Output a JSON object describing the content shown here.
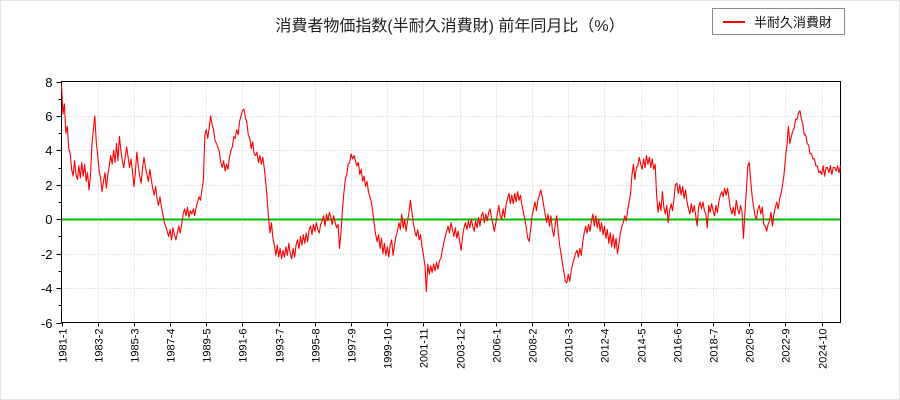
{
  "title": "消費者物価指数(半耐久消費財) 前年同月比（%）",
  "legend": {
    "label": "半耐久消費財"
  },
  "colors": {
    "series": "#ff0000",
    "zero_line": "#00bb00",
    "grid": "#cccccc",
    "frame": "#000000",
    "text": "#000000"
  },
  "y_axis": {
    "tick_labels": [
      "8",
      "6",
      "4",
      "2",
      "0",
      "-2",
      "-4",
      "-6"
    ],
    "min": -6,
    "max": 8
  },
  "x_axis": {
    "tick_labels": [
      "1981-1",
      "1983-2",
      "1985-3",
      "1987-4",
      "1989-5",
      "1991-6",
      "1993-7",
      "1995-8",
      "1997-9",
      "1999-10",
      "2001-11",
      "2003-12",
      "2006-1",
      "2008-2",
      "2010-3",
      "2012-4",
      "2014-5",
      "2016-6",
      "2018-7",
      "2020-8",
      "2022-9",
      "2024-10"
    ],
    "tick_interval_months": 25
  },
  "chart_data": {
    "type": "line",
    "series": [
      {
        "name": "半耐久消費財",
        "color": "#ff0000"
      }
    ],
    "x_start": "1981-1",
    "x_end": "2025-11",
    "frequency": "monthly",
    "title": "消費者物価指数(半耐久消費財) 前年同月比（%）",
    "ylabel": "",
    "ylim": [
      -6,
      8
    ],
    "grid": true,
    "zero_line": true,
    "legend_position": "top-right",
    "values": [
      7.8,
      6.1,
      6.7,
      5.0,
      5.4,
      4.1,
      3.8,
      2.9,
      2.5,
      3.4,
      2.6,
      2.3,
      3.1,
      2.4,
      3.3,
      2.5,
      3.2,
      2.2,
      2.7,
      1.7,
      2.5,
      4.3,
      5.2,
      6.0,
      4.5,
      3.7,
      2.8,
      2.4,
      1.6,
      2.2,
      2.7,
      1.8,
      2.6,
      3.1,
      3.7,
      3.2,
      4.0,
      3.3,
      4.4,
      3.4,
      4.8,
      4.0,
      3.4,
      3.0,
      3.6,
      4.2,
      3.6,
      3.0,
      3.5,
      2.8,
      1.9,
      2.7,
      3.9,
      3.1,
      2.5,
      2.1,
      3.0,
      3.6,
      3.0,
      2.6,
      2.2,
      2.9,
      2.3,
      1.8,
      1.4,
      1.9,
      1.2,
      0.8,
      1.3,
      0.7,
      0.3,
      -0.2,
      -0.4,
      -0.7,
      -1.0,
      -0.6,
      -1.2,
      -0.5,
      -0.9,
      -1.2,
      -0.8,
      -0.4,
      -0.8,
      -0.3,
      0.3,
      0.6,
      0.2,
      0.7,
      0.1,
      0.5,
      0.3,
      0.6,
      0.2,
      0.7,
      1.0,
      1.3,
      1.1,
      1.7,
      2.3,
      4.9,
      5.2,
      4.7,
      5.3,
      6.0,
      5.5,
      5.2,
      4.6,
      4.4,
      4.2,
      3.9,
      3.3,
      3.0,
      3.4,
      2.8,
      3.2,
      2.9,
      3.6,
      4.0,
      4.2,
      4.8,
      4.7,
      5.2,
      4.9,
      5.7,
      6.0,
      6.3,
      6.4,
      5.9,
      5.6,
      4.9,
      4.7,
      4.1,
      4.5,
      3.8,
      3.7,
      3.9,
      3.3,
      3.7,
      3.2,
      3.6,
      3.0,
      2.2,
      1.2,
      0.1,
      -0.8,
      -0.2,
      -1.1,
      -1.5,
      -2.1,
      -1.5,
      -2.2,
      -1.7,
      -2.3,
      -1.8,
      -2.2,
      -1.6,
      -2.1,
      -1.4,
      -2.0,
      -2.3,
      -1.7,
      -2.2,
      -1.5,
      -1.2,
      -1.7,
      -1.0,
      -1.5,
      -0.9,
      -1.4,
      -0.8,
      -1.3,
      -0.6,
      -0.4,
      -0.9,
      -0.3,
      -0.7,
      -0.2,
      -0.6,
      -0.8,
      -0.3,
      -0.1,
      0.2,
      -0.4,
      0.3,
      -0.1,
      0.4,
      0.1,
      -0.3,
      0.2,
      -0.2,
      -0.5,
      -0.3,
      -1.7,
      -0.8,
      0.5,
      1.5,
      2.3,
      2.6,
      3.2,
      3.3,
      3.8,
      3.5,
      3.7,
      3.4,
      3.1,
      3.3,
      2.6,
      2.9,
      2.2,
      2.5,
      1.9,
      2.2,
      1.6,
      1.3,
      1.0,
      0.4,
      -0.3,
      -0.9,
      -1.3,
      -0.9,
      -1.7,
      -1.1,
      -2.0,
      -1.4,
      -2.1,
      -1.6,
      -2.2,
      -1.5,
      -1.2,
      -2.1,
      -1.5,
      -1.0,
      -0.7,
      -0.2,
      -0.6,
      0.3,
      -0.5,
      0.0,
      -0.7,
      -0.1,
      0.4,
      1.1,
      0.4,
      -0.2,
      -0.7,
      -1.0,
      -0.6,
      -1.2,
      -0.9,
      -1.6,
      -2.1,
      -2.7,
      -4.2,
      -2.6,
      -3.2,
      -2.7,
      -3.1,
      -2.6,
      -3.0,
      -2.5,
      -2.9,
      -2.4,
      -2.3,
      -1.8,
      -1.4,
      -1.0,
      -0.7,
      -0.4,
      -0.8,
      -0.2,
      -0.6,
      -1.0,
      -0.5,
      -1.1,
      -0.7,
      -1.3,
      -1.8,
      -1.0,
      -0.5,
      -0.2,
      -0.6,
      -0.1,
      -0.5,
      0.0,
      -0.4,
      -0.7,
      -0.1,
      -0.5,
      0.1,
      -0.4,
      0.2,
      0.4,
      -0.2,
      0.3,
      -0.1,
      0.4,
      0.6,
      0.1,
      -0.3,
      -0.7,
      -0.2,
      0.3,
      0.8,
      0.2,
      0.0,
      0.6,
      0.1,
      0.8,
      1.2,
      1.5,
      0.9,
      1.4,
      0.9,
      1.5,
      1.0,
      1.6,
      1.1,
      1.4,
      0.8,
      0.4,
      0.0,
      -0.5,
      -1.1,
      -1.3,
      -0.6,
      0.2,
      0.6,
      1.0,
      0.5,
      1.1,
      1.4,
      1.7,
      1.3,
      0.8,
      0.3,
      -0.2,
      0.3,
      -0.4,
      0.2,
      -0.6,
      -1.0,
      -0.3,
      0.2,
      -0.7,
      -1.5,
      -2.0,
      -2.6,
      -3.1,
      -3.6,
      -3.7,
      -3.2,
      -3.6,
      -3.0,
      -2.6,
      -2.3,
      -2.0,
      -1.8,
      -2.2,
      -1.7,
      -2.1,
      -1.3,
      -0.8,
      -0.4,
      -0.8,
      -0.3,
      -0.7,
      -0.1,
      0.3,
      -0.4,
      0.2,
      -0.5,
      0.0,
      -0.7,
      -0.2,
      -0.9,
      -0.4,
      -1.1,
      -0.6,
      -1.4,
      -0.8,
      -1.6,
      -0.9,
      -1.7,
      -1.1,
      -2.0,
      -1.4,
      -0.8,
      -0.4,
      -0.2,
      0.2,
      -0.1,
      0.5,
      1.0,
      1.5,
      2.6,
      3.2,
      2.3,
      3.0,
      3.1,
      3.6,
      3.2,
      2.9,
      3.5,
      3.0,
      3.7,
      3.2,
      3.6,
      3.0,
      3.5,
      2.9,
      3.2,
      1.4,
      0.4,
      1.0,
      0.5,
      1.6,
      0.7,
      0.3,
      0.8,
      -0.2,
      0.5,
      0.9,
      0.5,
      1.2,
      2.0,
      2.1,
      1.5,
      2.0,
      1.4,
      1.9,
      1.2,
      1.7,
      1.0,
      0.6,
      0.3,
      0.9,
      0.4,
      0.8,
      0.2,
      -0.4,
      0.7,
      1.0,
      0.6,
      1.0,
      0.5,
      0.3,
      -0.5,
      0.8,
      0.4,
      0.9,
      0.5,
      0.2,
      0.8,
      0.4,
      1.0,
      1.4,
      1.6,
      1.3,
      1.8,
      1.4,
      1.8,
      1.2,
      0.6,
      0.3,
      0.7,
      0.2,
      1.1,
      0.6,
      0.3,
      0.8,
      0.4,
      -1.1,
      0.4,
      1.7,
      3.1,
      3.3,
      2.2,
      1.3,
      0.7,
      0.2,
      0.0,
      0.6,
      0.8,
      0.3,
      0.7,
      -0.3,
      -0.4,
      -0.7,
      -0.3,
      -0.1,
      0.4,
      -0.4,
      0.3,
      0.7,
      1.0,
      0.6,
      1.2,
      1.5,
      2.0,
      2.6,
      3.6,
      4.3,
      5.4,
      4.4,
      4.8,
      5.1,
      5.3,
      5.8,
      5.8,
      6.2,
      6.3,
      5.8,
      5.5,
      4.9,
      4.9,
      4.4,
      4.3,
      3.8,
      3.8,
      3.5,
      3.5,
      3.1,
      3.1,
      2.7,
      2.8,
      2.6,
      3.1,
      2.5,
      3.0,
      3.0,
      2.7,
      3.1,
      2.6,
      3.0,
      3.0,
      2.8,
      3.1,
      2.7,
      3.1
    ]
  }
}
